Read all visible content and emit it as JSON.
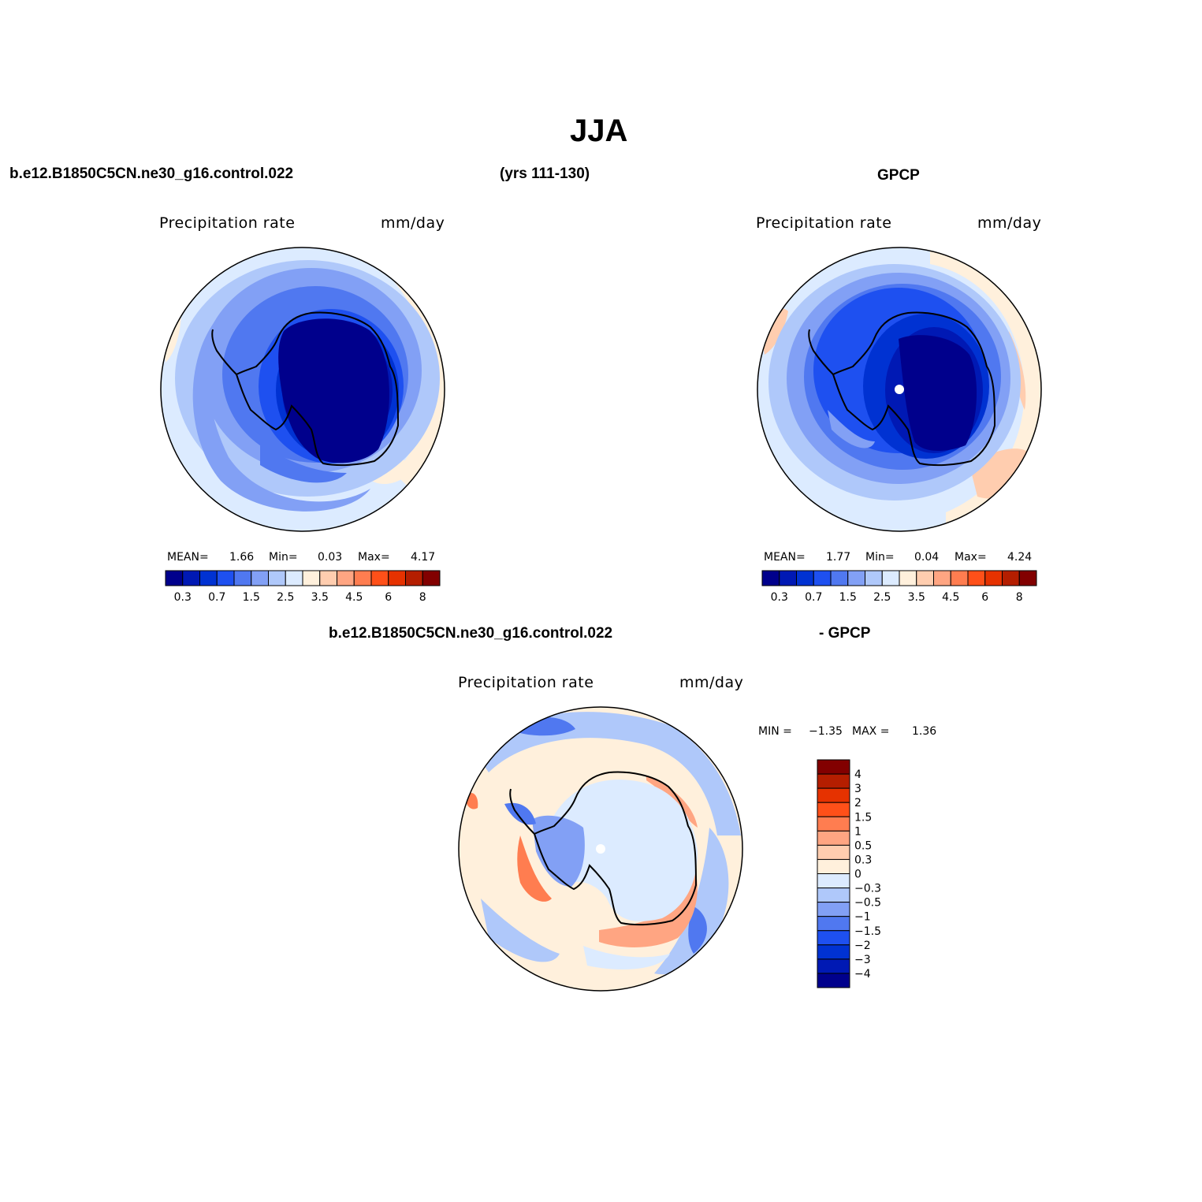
{
  "title": "JJA",
  "top_left": {
    "case_name": "b.e12.B1850C5CN.ne30_g16.control.022",
    "years": "(yrs 111-130)",
    "var_label": "Precipitation rate",
    "units": "mm/day",
    "stats": {
      "mean_label": "MEAN=",
      "mean": "1.66",
      "min_label": "Min=",
      "min": "0.03",
      "max_label": "Max=",
      "max": "4.17"
    }
  },
  "top_right": {
    "dataset": "GPCP",
    "var_label": "Precipitation rate",
    "units": "mm/day",
    "stats": {
      "mean_label": "MEAN=",
      "mean": "1.77",
      "min_label": "Min=",
      "min": "0.04",
      "max_label": "Max=",
      "max": "4.24"
    }
  },
  "bottom": {
    "case_name": "b.e12.B1850C5CN.ne30_g16.control.022",
    "diff_label": "- GPCP",
    "var_label": "Precipitation rate",
    "units": "mm/day",
    "minmax": {
      "min_label": "MIN =",
      "min": "−1.35",
      "max_label": "MAX =",
      "max": "1.36"
    }
  },
  "abs_colorbar": {
    "colors": [
      "#00008c",
      "#0019b4",
      "#0032d2",
      "#1e50f0",
      "#5078f0",
      "#82a0f5",
      "#afc8fa",
      "#dcebff",
      "#fff0dc",
      "#ffcdaf",
      "#ffa582",
      "#ff7d50",
      "#ff5019",
      "#e63200",
      "#b41e00",
      "#820000"
    ],
    "labels": [
      "0.3",
      "0.7",
      "1.5",
      "2.5",
      "3.5",
      "4.5",
      "6",
      "8"
    ]
  },
  "diff_colorbar": {
    "colors": [
      "#820000",
      "#b41e00",
      "#e63200",
      "#ff5019",
      "#ff7d50",
      "#ffa582",
      "#ffcdaf",
      "#fff0dc",
      "#dcebff",
      "#afc8fa",
      "#82a0f5",
      "#5078f0",
      "#1e50f0",
      "#0032d2",
      "#0019b4",
      "#00008c"
    ],
    "labels": [
      "4",
      "3",
      "2",
      "1.5",
      "1",
      "0.5",
      "0.3",
      "0",
      "−0.3",
      "−0.5",
      "−1",
      "−1.5",
      "−2",
      "−3",
      "−4"
    ]
  }
}
